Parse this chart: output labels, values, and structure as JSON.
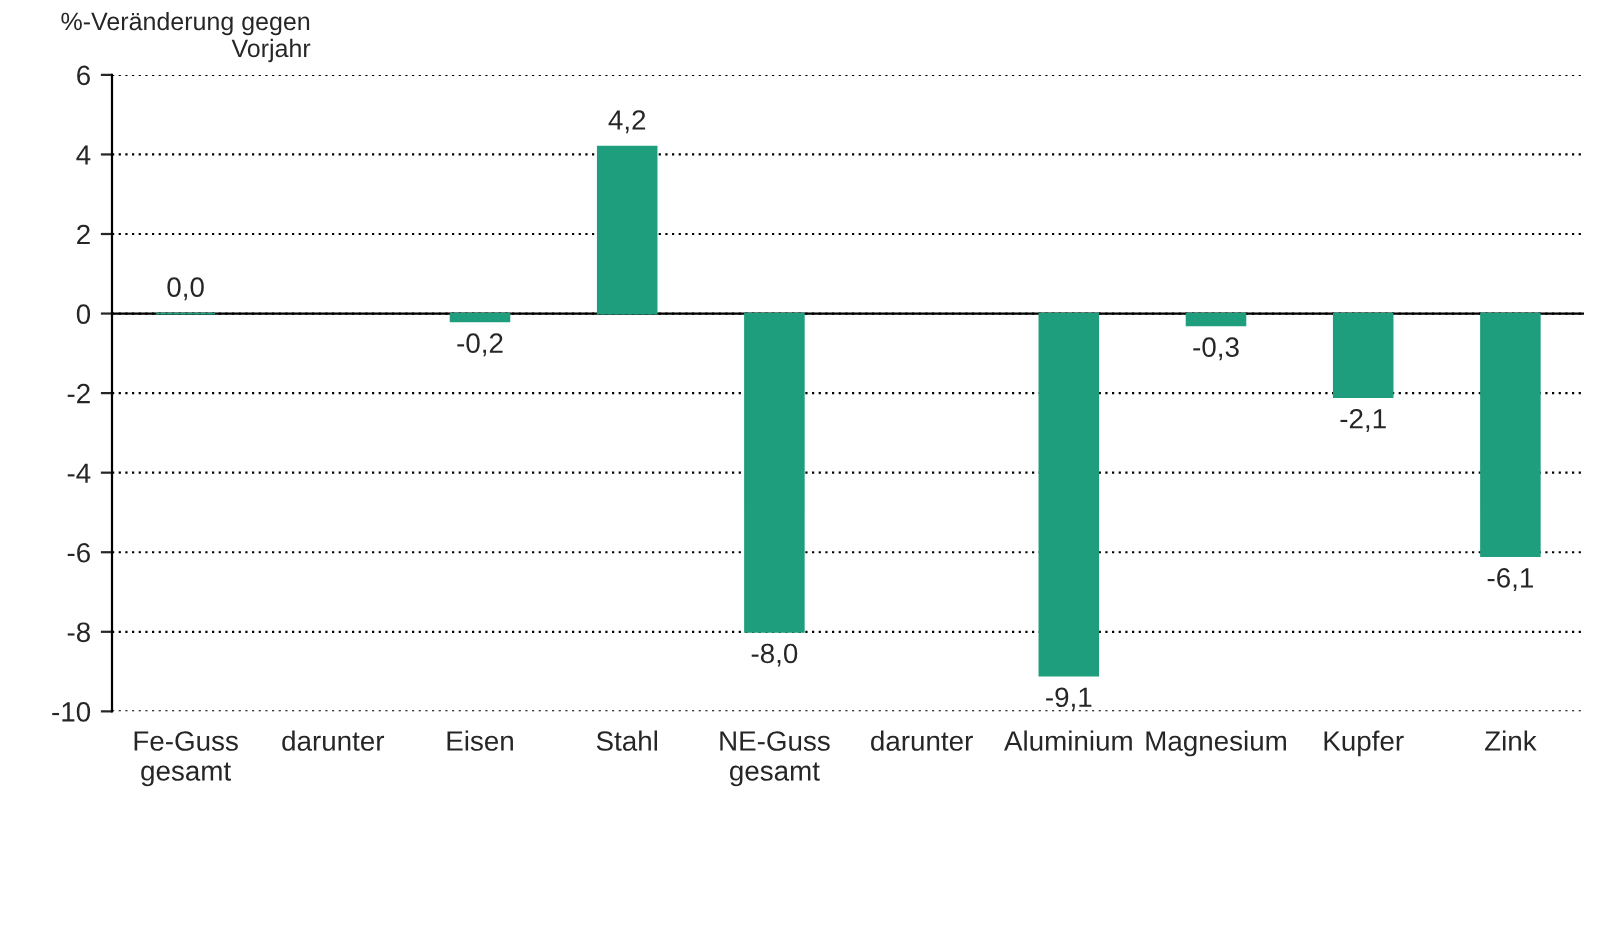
{
  "chart_data": {
    "type": "bar",
    "ylabel": "%-Veränderung gegen\nVorjahr",
    "categories": [
      "Fe-Guss\ngesamt",
      "darunter",
      "Eisen",
      "Stahl",
      "NE-Guss\ngesamt",
      "darunter",
      "Aluminium",
      "Magnesium",
      "Kupfer",
      "Zink"
    ],
    "values": [
      0.0,
      null,
      -0.2,
      4.2,
      -8.0,
      null,
      -9.1,
      -0.3,
      -2.1,
      -6.1
    ],
    "value_labels": [
      "0,0",
      null,
      "-0,2",
      "4,2",
      "-8,0",
      null,
      "-9,1",
      "-0,3",
      "-2,1",
      "-6,1"
    ],
    "color": "#1f9e7e",
    "ylim": [
      -10,
      6
    ],
    "yticks": [
      -10,
      -8,
      -6,
      -4,
      -2,
      0,
      2,
      4,
      6
    ],
    "grid": "y",
    "legend": false
  }
}
